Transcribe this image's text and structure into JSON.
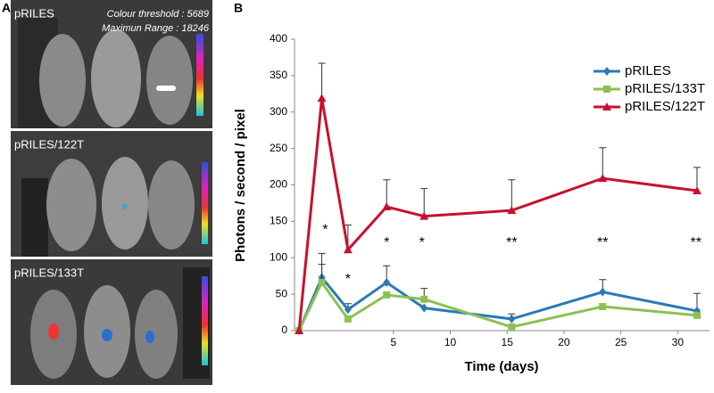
{
  "panel_a": {
    "label": "A",
    "panels": [
      {
        "title": "pRILES",
        "info": [
          "Colour threshold : 5689",
          "Maximun Range : 18246"
        ]
      },
      {
        "title": "pRILES/122T"
      },
      {
        "title": "pRILES/133T"
      }
    ]
  },
  "chart_data": {
    "type": "line",
    "panel_label": "B",
    "x_label": "Time (days)",
    "y_label": "Photons / second / pixel",
    "x": [
      -3.3,
      -1.3,
      1,
      4.4,
      7.7,
      15.4,
      23.4,
      31.7
    ],
    "xlim": [
      -3.7,
      32.8
    ],
    "xticks": [
      5,
      10,
      15,
      20,
      25,
      30
    ],
    "ylim": [
      0,
      400
    ],
    "yticks": [
      0,
      50,
      100,
      150,
      200,
      250,
      300,
      350,
      400
    ],
    "legend": "upper right",
    "series": [
      {
        "name": "pRILES",
        "color": "#2a7ab8",
        "marker": "diamond",
        "values": [
          0,
          73,
          29,
          66,
          31,
          16,
          53,
          27
        ],
        "errors": [
          null,
          33,
          8,
          23,
          null,
          7,
          17,
          24
        ]
      },
      {
        "name": "pRILES/133T",
        "color": "#8cc152",
        "marker": "square",
        "values": [
          0,
          66,
          16,
          49,
          43,
          5,
          33,
          21
        ],
        "errors": [
          null,
          25,
          null,
          null,
          15,
          null,
          null,
          null
        ]
      },
      {
        "name": "pRILES/122T",
        "color": "#c8102e",
        "marker": "triangle",
        "values": [
          0,
          319,
          111,
          170,
          157,
          165,
          209,
          192
        ],
        "errors": [
          null,
          48,
          34,
          37,
          38,
          42,
          42,
          32
        ]
      }
    ],
    "annotations": [
      {
        "text": "*",
        "x": -1.0,
        "y": 138
      },
      {
        "text": "*",
        "x": 1.0,
        "y": 70
      },
      {
        "text": "*",
        "x": 4.4,
        "y": 120
      },
      {
        "text": "*",
        "x": 7.5,
        "y": 120
      },
      {
        "text": "**",
        "x": 15.4,
        "y": 120
      },
      {
        "text": "**",
        "x": 23.4,
        "y": 120
      },
      {
        "text": "**",
        "x": 31.6,
        "y": 120
      }
    ]
  }
}
